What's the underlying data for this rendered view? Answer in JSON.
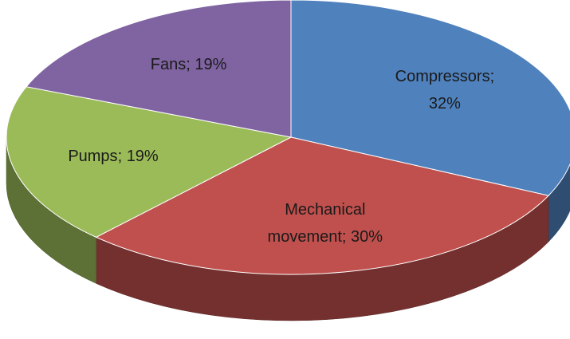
{
  "chart_data": {
    "type": "pie3d",
    "categories": [
      "Compressors",
      "Mechanical movement",
      "Pumps",
      "Fans"
    ],
    "values": [
      32,
      30,
      19,
      19
    ],
    "value_labels": [
      "32%",
      "30%",
      "19%",
      "19%"
    ],
    "label_separator": ";",
    "colors": [
      "#4f81bd",
      "#c0504d",
      "#9bbb59",
      "#8064a2"
    ]
  }
}
